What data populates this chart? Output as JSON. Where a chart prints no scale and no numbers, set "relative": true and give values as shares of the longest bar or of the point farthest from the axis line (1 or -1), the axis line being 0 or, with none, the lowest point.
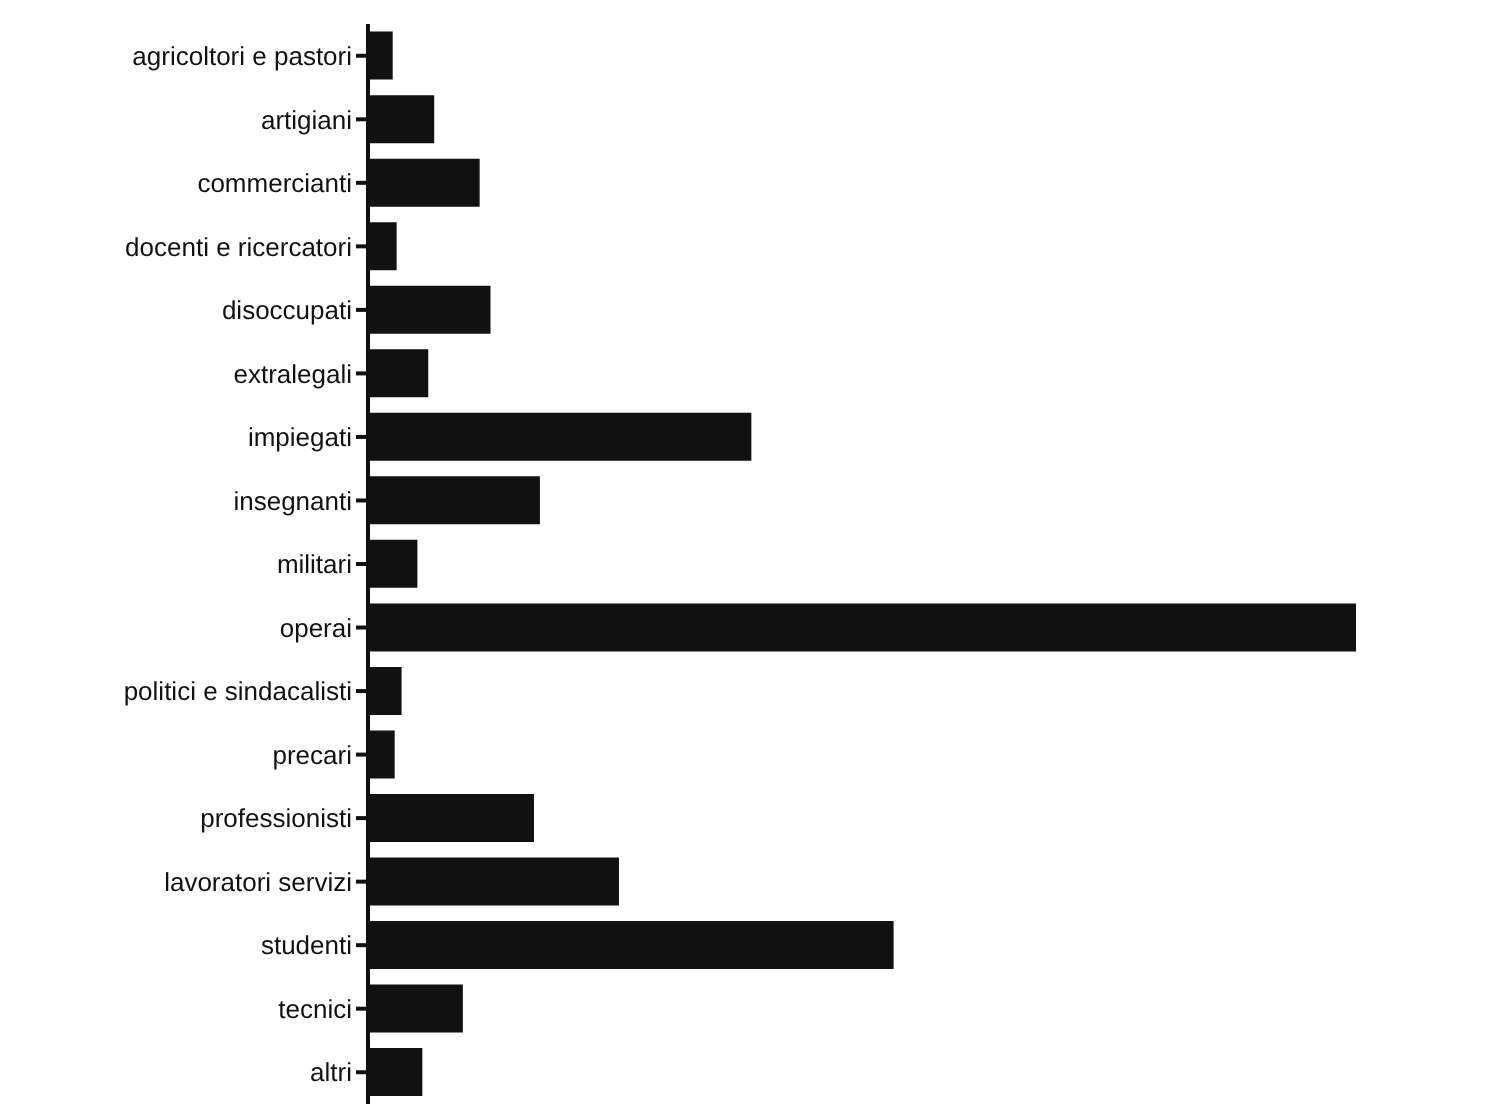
{
  "chart_data": {
    "type": "bar",
    "orientation": "horizontal",
    "relative": true,
    "color": "#111111",
    "categories": [
      "agricoltori e pastori",
      "artigiani",
      "commercianti",
      "docenti e ricercatori",
      "disoccupati",
      "extralegali",
      "impiegati",
      "insegnanti",
      "militari",
      "operai",
      "politici e sindacalisti",
      "precari",
      "professionisti",
      "lavoratori servizi",
      "studenti",
      "tecnici",
      "altri"
    ],
    "values": [
      0.025,
      0.067,
      0.113,
      0.029,
      0.124,
      0.061,
      0.388,
      0.174,
      0.05,
      1,
      0.034,
      0.027,
      0.168,
      0.254,
      0.532,
      0.096,
      0.055
    ]
  }
}
